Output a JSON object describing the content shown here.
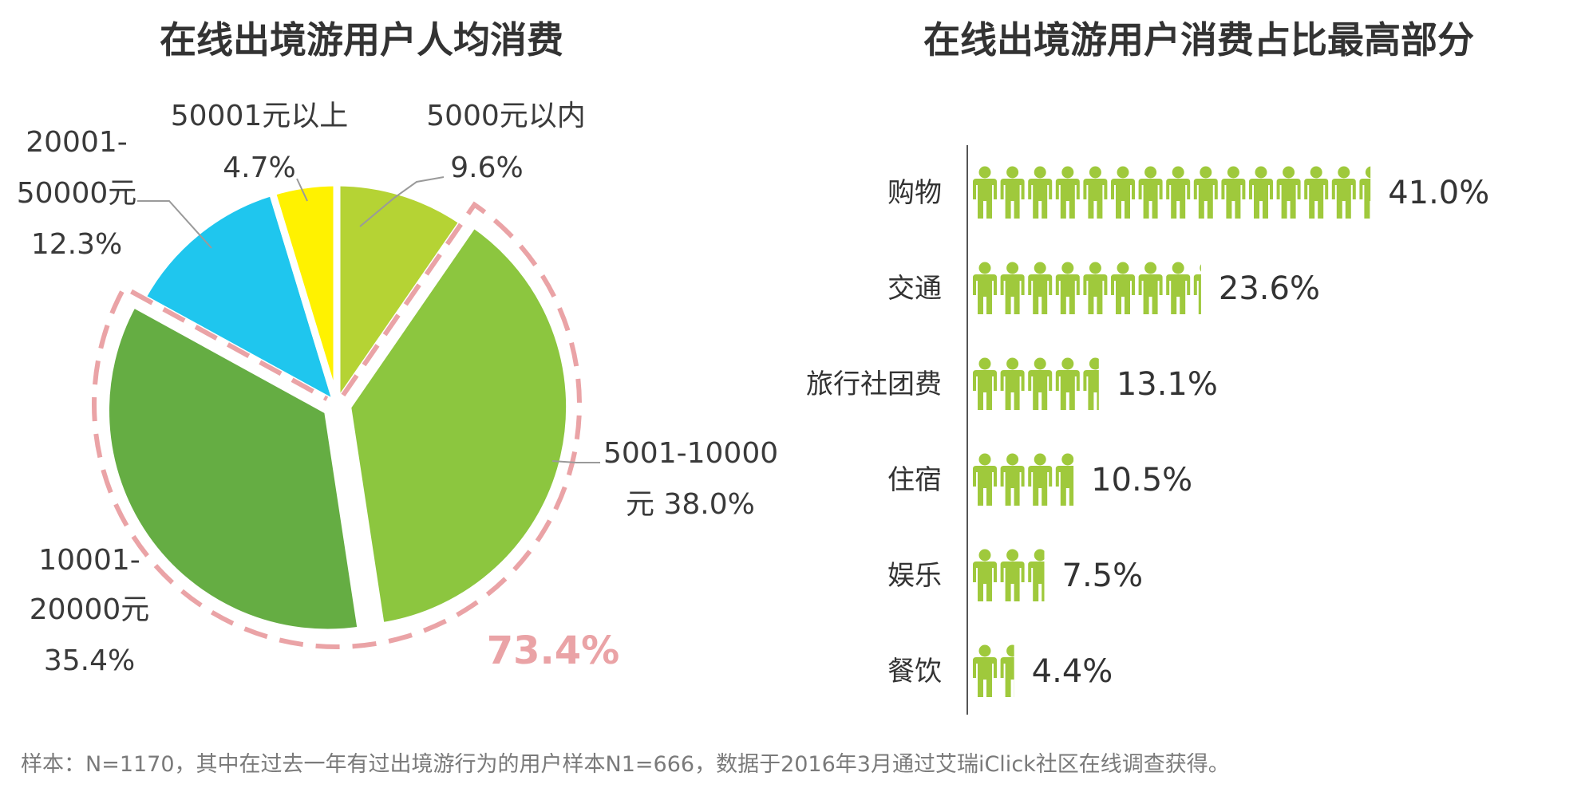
{
  "chart_data": [
    {
      "type": "pie",
      "title": "在线出境游用户人均消费",
      "slices": [
        {
          "line1": "5000元以内",
          "line2": "9.6%",
          "value": 9.6,
          "color": "#b5d334"
        },
        {
          "line1": "5001-10000",
          "line2": "元 38.0%",
          "value": 38.0,
          "color": "#8cc63f"
        },
        {
          "line1": "10001-",
          "line2": "20000元",
          "line3": "35.4%",
          "value": 35.4,
          "color": "#65ad43"
        },
        {
          "line1": "20001-",
          "line2": "50000元",
          "line3": "12.3%",
          "value": 12.3,
          "color": "#1fc6ee"
        },
        {
          "line1": "50001元以上",
          "line2": "4.7%",
          "value": 4.7,
          "color": "#fff200"
        }
      ],
      "highlight_group": [
        "5001-10000元",
        "10001-20000元"
      ],
      "highlight_label": "73.4%",
      "highlight_color": "#eaa3a6"
    },
    {
      "type": "bar",
      "style": "pictogram",
      "title": "在线出境游用户消费占比最高部分",
      "categories": [
        "购物",
        "交通",
        "旅行社团费",
        "住宿",
        "娱乐",
        "餐饮"
      ],
      "values": [
        41.0,
        23.6,
        13.1,
        10.5,
        7.5,
        4.4
      ],
      "value_labels": [
        "41.0%",
        "23.6%",
        "13.1%",
        "10.5%",
        "7.5%",
        "4.4%"
      ],
      "unit": "%",
      "icon": "person-icon",
      "icon_color": "#9fc93c"
    }
  ],
  "footnote": "样本：N=1170，其中在过去一年有过出境游行为的用户样本N1=666，数据于2016年3月通过艾瑞iClick社区在线调查获得。"
}
